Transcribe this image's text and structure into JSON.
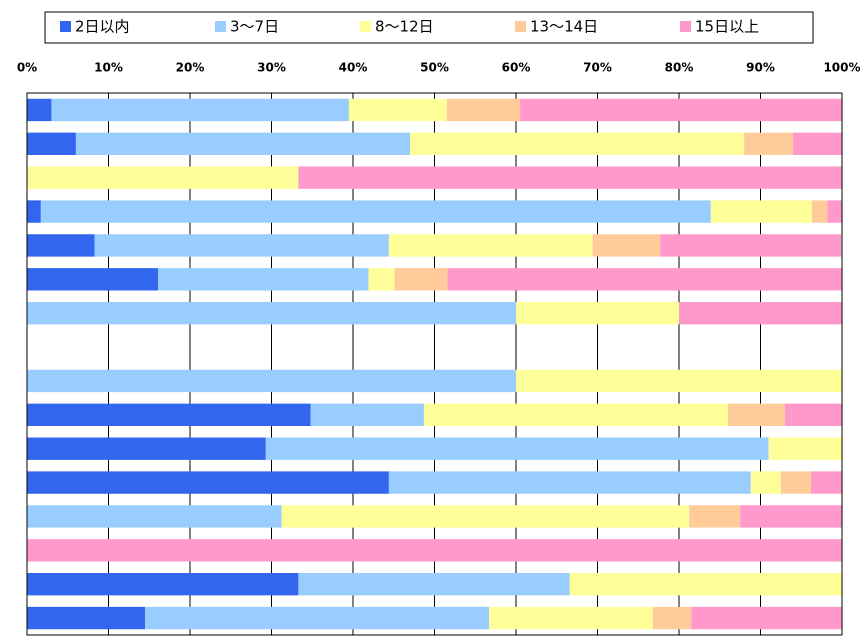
{
  "chart_data": {
    "type": "stacked-barh",
    "categories": [
      null,
      null,
      null,
      null,
      null,
      null,
      null,
      null,
      null,
      null,
      null,
      null,
      null,
      null,
      null,
      null
    ],
    "series": [
      {
        "name": "2日以内",
        "color": "#3366ee",
        "values": [
          3,
          6,
          0,
          1.7,
          8.3,
          16.1,
          0,
          0,
          0,
          34.8,
          29.3,
          44.4,
          0,
          0,
          33.3,
          14.5
        ]
      },
      {
        "name": "3～7日",
        "color": "#99ccff",
        "values": [
          36.5,
          41,
          0,
          82.2,
          36.1,
          25.8,
          60,
          0,
          60,
          13.9,
          61.7,
          44.4,
          31.25,
          0,
          33.3,
          42.2
        ]
      },
      {
        "name": "8～12日",
        "color": "#ffff99",
        "values": [
          12,
          41,
          33.3,
          12.4,
          25,
          3.2,
          20,
          0,
          40,
          37.3,
          9,
          3.7,
          50,
          0,
          33.4,
          20.1
        ]
      },
      {
        "name": "13～14日",
        "color": "#ffcc99",
        "values": [
          9,
          6,
          0,
          1.9,
          8.3,
          6.5,
          0,
          0,
          0,
          7,
          0,
          3.7,
          6.25,
          0,
          0,
          4.7
        ]
      },
      {
        "name": "15日以上",
        "color": "#ff99cc",
        "values": [
          39.5,
          6,
          66.7,
          1.8,
          22.2,
          48.4,
          20,
          0,
          0,
          7,
          0,
          3.8,
          12.5,
          100,
          0,
          18.5
        ]
      }
    ],
    "xlim": [
      0,
      100
    ],
    "xticks": [
      {
        "value": 0,
        "label": "0%"
      },
      {
        "value": 10,
        "label": "10%"
      },
      {
        "value": 20,
        "label": "20%"
      },
      {
        "value": 30,
        "label": "30%"
      },
      {
        "value": 40,
        "label": "40%"
      },
      {
        "value": 50,
        "label": "50%"
      },
      {
        "value": 60,
        "label": "60%"
      },
      {
        "value": 70,
        "label": "70%"
      },
      {
        "value": 80,
        "label": "80%"
      },
      {
        "value": 90,
        "label": "90%"
      },
      {
        "value": 100,
        "label": "100%"
      }
    ],
    "grid": true,
    "legend": "top"
  }
}
